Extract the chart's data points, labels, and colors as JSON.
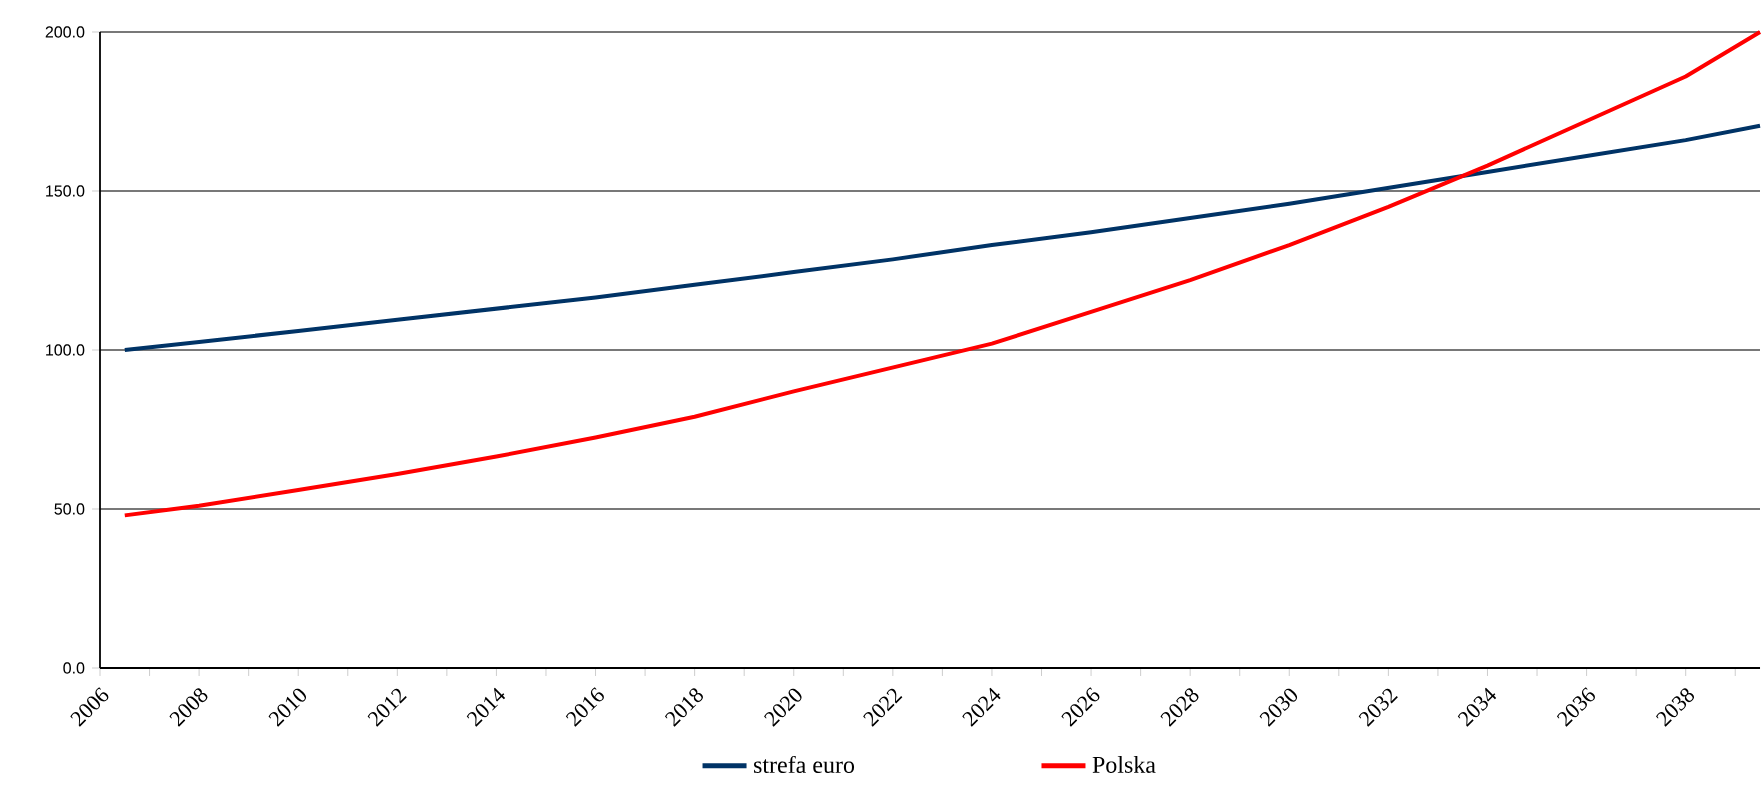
{
  "chart_data": {
    "type": "line",
    "xlim": [
      2006,
      2039.5
    ],
    "ylim": [
      0,
      200
    ],
    "xticks": [
      2006,
      {
        "value": 2007,
        "label": null
      },
      2008,
      {
        "value": 2009,
        "label": null
      },
      2010,
      {
        "value": 2011,
        "label": null
      },
      2012,
      {
        "value": 2013,
        "label": null
      },
      2014,
      {
        "value": 2015,
        "label": null
      },
      2016,
      {
        "value": 2017,
        "label": null
      },
      2018,
      {
        "value": 2019,
        "label": null
      },
      2020,
      {
        "value": 2021,
        "label": null
      },
      2022,
      {
        "value": 2023,
        "label": null
      },
      2024,
      {
        "value": 2025,
        "label": null
      },
      2026,
      {
        "value": 2027,
        "label": null
      },
      2028,
      {
        "value": 2029,
        "label": null
      },
      2030,
      {
        "value": 2031,
        "label": null
      },
      2032,
      {
        "value": 2033,
        "label": null
      },
      2034,
      {
        "value": 2035,
        "label": null
      },
      2036,
      {
        "value": 2037,
        "label": null
      },
      2038,
      {
        "value": 2039,
        "label": null
      }
    ],
    "yticks": [
      {
        "value": 0,
        "label": "0.0"
      },
      {
        "value": 50,
        "label": "50.0"
      },
      {
        "value": 100,
        "label": "100.0"
      },
      {
        "value": 150,
        "label": "150.0"
      },
      {
        "value": 200,
        "label": "200.0"
      }
    ],
    "x": [
      2006.5,
      2008,
      2010,
      2012,
      2014,
      2016,
      2018,
      2020,
      2022,
      2024,
      2026,
      2028,
      2030,
      2032,
      2034,
      2036,
      2038,
      2039.5
    ],
    "grid": "y",
    "legend": "bottom",
    "marker": "none",
    "line_style": "solid",
    "series": [
      {
        "name": "strefa euro",
        "color": "#003366",
        "values": [
          100,
          102.5,
          106,
          109.5,
          113,
          116.5,
          120.5,
          124.5,
          128.5,
          133,
          137,
          141.5,
          146,
          151,
          156,
          161,
          166,
          170.5
        ]
      },
      {
        "name": "Polska",
        "color": "#ff0000",
        "values": [
          48,
          51,
          56,
          61,
          66.5,
          72.5,
          79,
          87,
          94.5,
          102,
          112,
          122,
          133,
          145,
          158,
          172,
          186,
          200
        ]
      }
    ]
  }
}
